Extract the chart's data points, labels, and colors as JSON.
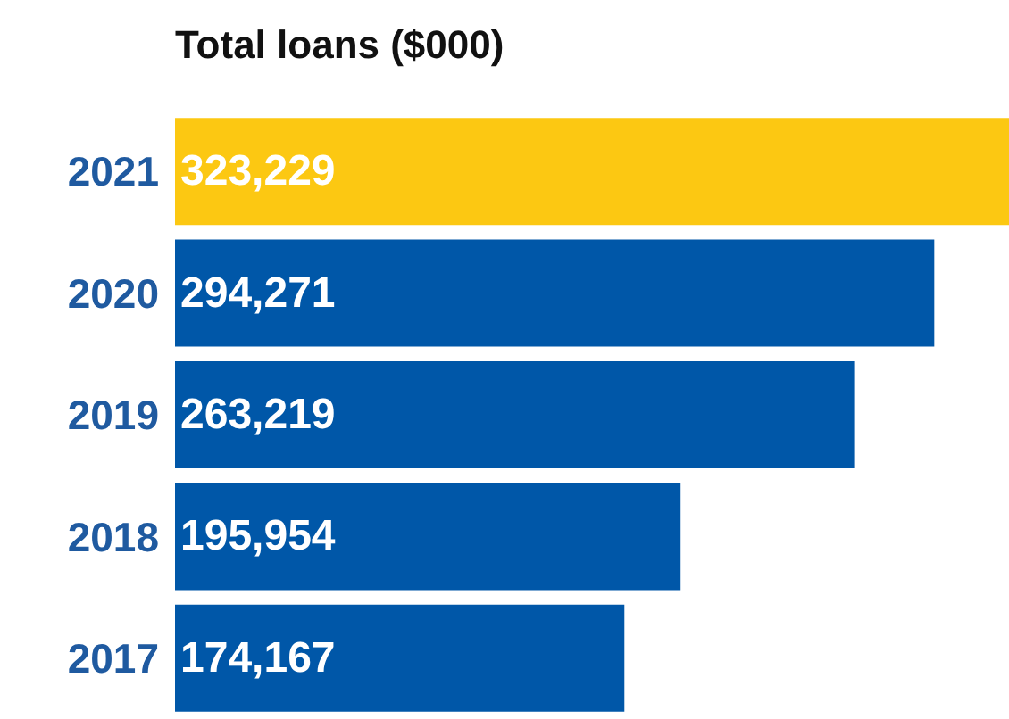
{
  "chart_data": {
    "type": "bar",
    "orientation": "horizontal",
    "title": "Total loans ($000)",
    "categories": [
      "2021",
      "2020",
      "2019",
      "2018",
      "2017"
    ],
    "values": [
      323229,
      294271,
      263219,
      195954,
      174167
    ],
    "colors": [
      "#fcc812",
      "#0057a8",
      "#0057a8",
      "#0057a8",
      "#0057a8"
    ],
    "value_labels": [
      "323,229",
      "294,271",
      "263,219",
      "195,954",
      "174,167"
    ],
    "tick_labels": "y"
  }
}
